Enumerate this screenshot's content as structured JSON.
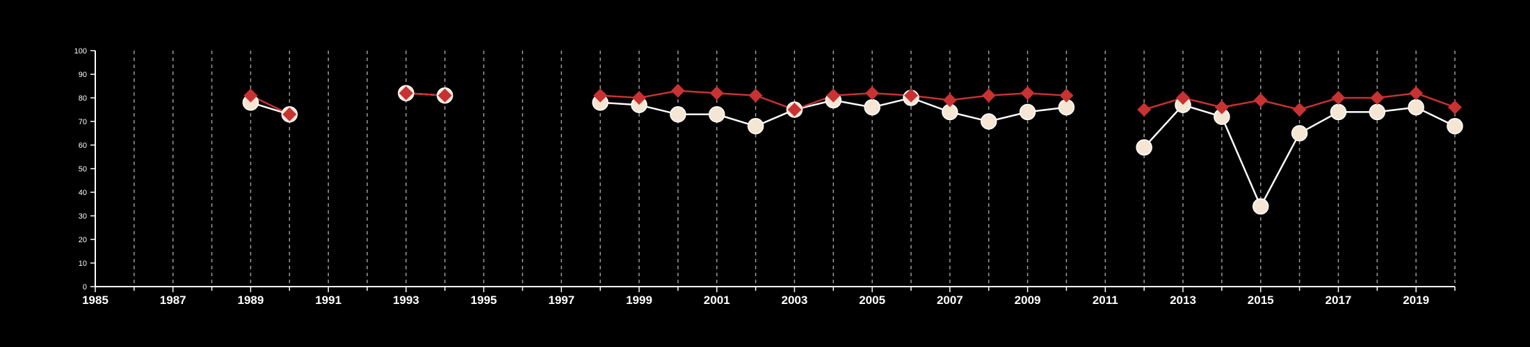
{
  "chart_data": {
    "type": "line",
    "title": "",
    "xlabel": "",
    "ylabel": "",
    "xlim": [
      1985,
      2020
    ],
    "ylim": [
      0,
      100
    ],
    "x_ticks": [
      1985,
      1987,
      1989,
      1991,
      1993,
      1995,
      1997,
      1999,
      2001,
      2003,
      2005,
      2007,
      2009,
      2011,
      2013,
      2015,
      2017,
      2019
    ],
    "y_ticks": [
      0,
      10,
      20,
      30,
      40,
      50,
      60,
      70,
      80,
      90,
      100
    ],
    "grid": "vertical dashed lines at every year",
    "colors": {
      "background": "#000000",
      "axis": "#ffffff",
      "grid": "#9a9a9a",
      "series_white_line": "#ffffff",
      "series_white_marker": "#f5e6d3",
      "series_red": "#c83232"
    },
    "x": [
      1989,
      1990,
      1993,
      1994,
      1998,
      1999,
      2000,
      2001,
      2002,
      2003,
      2004,
      2005,
      2006,
      2007,
      2008,
      2009,
      2010,
      2012,
      2013,
      2014,
      2015,
      2016,
      2017,
      2018,
      2019,
      2020
    ],
    "series": [
      {
        "marker": "circle",
        "values": [
          78,
          73,
          82,
          81,
          78,
          77,
          73,
          73,
          68,
          75,
          79,
          76,
          80,
          74,
          70,
          74,
          76,
          59,
          77,
          72,
          34,
          65,
          74,
          74,
          76,
          68
        ]
      },
      {
        "marker": "diamond",
        "values": [
          81,
          73,
          82,
          81,
          81,
          80,
          83,
          82,
          81,
          75,
          81,
          82,
          81,
          79,
          81,
          82,
          81,
          75,
          80,
          76,
          79,
          75,
          80,
          80,
          82,
          76
        ]
      }
    ]
  }
}
